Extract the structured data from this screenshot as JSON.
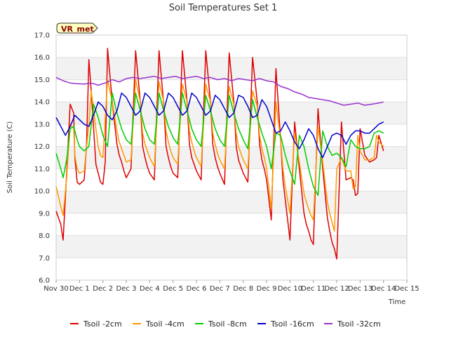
{
  "chart_data": {
    "type": "line",
    "title": "Soil Temperatures Set 1",
    "xlabel": "Time",
    "ylabel": "Soil Temperature (C)",
    "badge": "VR_met",
    "xlim": [
      0,
      15
    ],
    "ylim": [
      6.0,
      17.0
    ],
    "x_ticks": [
      {
        "x": 0,
        "label": "Nov 30"
      },
      {
        "x": 1,
        "label": "Dec 1"
      },
      {
        "x": 2,
        "label": "Dec 2"
      },
      {
        "x": 3,
        "label": "Dec 3"
      },
      {
        "x": 4,
        "label": "Dec 4"
      },
      {
        "x": 5,
        "label": "Dec 5"
      },
      {
        "x": 6,
        "label": "Dec 6"
      },
      {
        "x": 7,
        "label": "Dec 7"
      },
      {
        "x": 8,
        "label": "Dec 8"
      },
      {
        "x": 9,
        "label": "Dec 9"
      },
      {
        "x": 10,
        "label": "Dec 10"
      },
      {
        "x": 11,
        "label": "Dec 11"
      },
      {
        "x": 12,
        "label": "Dec 12"
      },
      {
        "x": 13,
        "label": "Dec 13"
      },
      {
        "x": 14,
        "label": "Dec 14"
      },
      {
        "x": 15,
        "label": "Dec 15"
      }
    ],
    "y_ticks": [
      {
        "y": 6.0,
        "label": "6.0"
      },
      {
        "y": 7.0,
        "label": "7.0"
      },
      {
        "y": 8.0,
        "label": "8.0"
      },
      {
        "y": 9.0,
        "label": "9.0"
      },
      {
        "y": 10.0,
        "label": "10.0"
      },
      {
        "y": 11.0,
        "label": "11.0"
      },
      {
        "y": 12.0,
        "label": "12.0"
      },
      {
        "y": 13.0,
        "label": "13.0"
      },
      {
        "y": 14.0,
        "label": "14.0"
      },
      {
        "y": 15.0,
        "label": "15.0"
      },
      {
        "y": 16.0,
        "label": "16.0"
      },
      {
        "y": 17.0,
        "label": "17.0"
      }
    ],
    "grid": true,
    "legend_position": "bottom",
    "series": [
      {
        "name": "Tsoil -2cm",
        "color": "#dd0000",
        "x": [
          0.0,
          0.2,
          0.3,
          0.45,
          0.6,
          0.75,
          0.8,
          0.9,
          1.0,
          1.1,
          1.2,
          1.3,
          1.4,
          1.5,
          1.7,
          1.8,
          1.9,
          2.0,
          2.1,
          2.2,
          2.4,
          2.6,
          2.7,
          2.8,
          2.9,
          3.0,
          3.2,
          3.4,
          3.6,
          3.7,
          3.8,
          3.9,
          4.0,
          4.2,
          4.4,
          4.6,
          4.7,
          4.8,
          4.9,
          5.0,
          5.2,
          5.4,
          5.6,
          5.7,
          5.8,
          5.9,
          6.0,
          6.2,
          6.4,
          6.6,
          6.7,
          6.8,
          6.9,
          7.0,
          7.2,
          7.4,
          7.6,
          7.7,
          7.8,
          7.9,
          8.0,
          8.2,
          8.4,
          8.6,
          8.7,
          8.8,
          8.9,
          9.0,
          9.2,
          9.4,
          9.6,
          9.7,
          9.8,
          9.9,
          10.0,
          10.2,
          10.4,
          10.6,
          10.7,
          10.8,
          10.9,
          11.0,
          11.2,
          11.4,
          11.6,
          11.7,
          11.8,
          11.9,
          12.0,
          12.2,
          12.4,
          12.6,
          12.7,
          12.8,
          12.9,
          13.0,
          13.2,
          13.4,
          13.6,
          13.7,
          13.8,
          14.0
        ],
        "y": [
          9.1,
          8.5,
          7.8,
          10.8,
          13.9,
          13.5,
          11.5,
          10.4,
          10.3,
          10.4,
          10.5,
          12.0,
          15.9,
          14.5,
          11.2,
          10.8,
          10.4,
          10.3,
          11.3,
          16.4,
          14.0,
          12.1,
          11.6,
          11.3,
          10.9,
          10.6,
          11.0,
          16.3,
          14.0,
          12.0,
          11.5,
          11.1,
          10.8,
          10.5,
          16.3,
          13.9,
          12.0,
          11.5,
          11.1,
          10.8,
          10.6,
          16.3,
          14.0,
          12.1,
          11.5,
          11.2,
          10.9,
          10.5,
          16.3,
          14.0,
          12.1,
          11.5,
          11.1,
          10.8,
          10.3,
          16.2,
          14.0,
          12.0,
          11.4,
          11.1,
          10.8,
          10.4,
          16.0,
          14.0,
          12.1,
          11.4,
          11.0,
          10.5,
          8.7,
          15.5,
          12.3,
          10.5,
          9.6,
          8.7,
          7.8,
          13.1,
          11.0,
          9.0,
          8.5,
          8.2,
          7.8,
          7.6,
          13.7,
          11.0,
          8.8,
          8.2,
          7.7,
          7.4,
          6.95,
          13.1,
          10.5,
          10.6,
          10.5,
          9.8,
          9.9,
          12.8,
          11.6,
          11.3,
          11.4,
          11.5,
          12.5,
          11.8
        ]
      },
      {
        "name": "Tsoil -4cm",
        "color": "#ff9900",
        "x": [
          0.0,
          0.2,
          0.3,
          0.45,
          0.6,
          0.75,
          0.8,
          0.9,
          1.0,
          1.2,
          1.4,
          1.5,
          1.7,
          1.8,
          1.9,
          2.0,
          2.2,
          2.4,
          2.6,
          2.7,
          2.8,
          2.9,
          3.0,
          3.2,
          3.4,
          3.6,
          3.7,
          3.8,
          3.9,
          4.0,
          4.2,
          4.4,
          4.6,
          4.7,
          4.8,
          4.9,
          5.0,
          5.2,
          5.4,
          5.6,
          5.7,
          5.8,
          5.9,
          6.0,
          6.2,
          6.4,
          6.6,
          6.7,
          6.8,
          6.9,
          7.0,
          7.2,
          7.4,
          7.6,
          7.7,
          7.8,
          7.9,
          8.0,
          8.2,
          8.4,
          8.6,
          8.7,
          8.8,
          8.9,
          9.0,
          9.2,
          9.4,
          9.6,
          9.7,
          9.8,
          9.9,
          10.0,
          10.2,
          10.4,
          10.6,
          10.7,
          10.8,
          10.9,
          11.0,
          11.2,
          11.4,
          11.6,
          11.7,
          11.8,
          11.9,
          12.0,
          12.2,
          12.4,
          12.6,
          12.7,
          12.8,
          12.9,
          13.0,
          13.2,
          13.4,
          13.6,
          13.7,
          13.8,
          14.0
        ],
        "y": [
          10.2,
          9.3,
          8.9,
          10.6,
          13.0,
          12.8,
          11.6,
          11.0,
          10.8,
          10.9,
          13.0,
          14.5,
          12.8,
          12.0,
          11.6,
          11.5,
          15.0,
          14.0,
          12.7,
          12.2,
          11.9,
          11.6,
          11.3,
          11.4,
          15.0,
          14.0,
          12.6,
          12.1,
          11.8,
          11.5,
          11.1,
          14.9,
          14.0,
          12.7,
          12.2,
          11.8,
          11.5,
          11.2,
          14.8,
          14.0,
          12.7,
          12.2,
          11.8,
          11.5,
          11.1,
          14.8,
          14.0,
          12.6,
          12.1,
          11.7,
          11.4,
          11.0,
          14.7,
          13.9,
          12.6,
          12.0,
          11.7,
          11.4,
          11.0,
          14.5,
          13.8,
          12.5,
          11.9,
          11.5,
          11.0,
          9.2,
          14.0,
          12.3,
          11.0,
          10.2,
          9.6,
          9.0,
          12.6,
          11.3,
          9.9,
          9.5,
          9.2,
          8.9,
          8.7,
          12.9,
          11.3,
          9.5,
          9.0,
          8.6,
          8.2,
          11.0,
          11.5,
          10.9,
          10.9,
          10.1,
          10.2,
          12.5,
          11.8,
          11.4,
          11.4,
          11.5,
          12.5,
          12.2,
          12.0
        ]
      },
      {
        "name": "Tsoil -8cm",
        "color": "#00cc00",
        "x": [
          0.0,
          0.2,
          0.3,
          0.45,
          0.6,
          0.75,
          0.9,
          1.0,
          1.2,
          1.4,
          1.6,
          1.8,
          2.0,
          2.2,
          2.4,
          2.6,
          2.8,
          3.0,
          3.2,
          3.4,
          3.6,
          3.8,
          4.0,
          4.2,
          4.4,
          4.6,
          4.8,
          5.0,
          5.2,
          5.4,
          5.6,
          5.8,
          6.0,
          6.2,
          6.4,
          6.6,
          6.8,
          7.0,
          7.2,
          7.4,
          7.6,
          7.8,
          8.0,
          8.2,
          8.4,
          8.6,
          8.8,
          9.0,
          9.2,
          9.4,
          9.6,
          9.8,
          10.0,
          10.2,
          10.4,
          10.6,
          10.8,
          11.0,
          11.2,
          11.4,
          11.6,
          11.8,
          12.0,
          12.2,
          12.4,
          12.6,
          12.8,
          13.0,
          13.2,
          13.4,
          13.6,
          13.8,
          14.0
        ],
        "y": [
          11.7,
          11.0,
          10.6,
          11.4,
          12.8,
          12.9,
          12.3,
          12.0,
          11.8,
          12.0,
          13.9,
          13.3,
          12.5,
          12.0,
          14.4,
          13.5,
          12.8,
          12.3,
          12.1,
          14.4,
          13.6,
          12.8,
          12.3,
          12.1,
          14.4,
          13.6,
          12.9,
          12.4,
          12.1,
          14.4,
          13.6,
          12.8,
          12.3,
          12.0,
          14.3,
          13.6,
          12.8,
          12.3,
          12.0,
          14.3,
          13.5,
          12.8,
          12.3,
          11.9,
          14.1,
          13.3,
          12.6,
          12.0,
          11.0,
          12.6,
          12.5,
          11.6,
          10.9,
          10.3,
          12.5,
          12.0,
          11.0,
          10.2,
          9.8,
          12.7,
          12.0,
          11.6,
          11.7,
          11.5,
          11.1,
          12.3,
          12.0,
          11.9,
          11.9,
          12.0,
          12.6,
          12.7,
          12.6
        ]
      },
      {
        "name": "Tsoil -16cm",
        "color": "#0000cc",
        "x": [
          0.0,
          0.2,
          0.4,
          0.6,
          0.8,
          1.0,
          1.2,
          1.4,
          1.6,
          1.8,
          2.0,
          2.2,
          2.4,
          2.6,
          2.8,
          3.0,
          3.2,
          3.4,
          3.6,
          3.8,
          4.0,
          4.2,
          4.4,
          4.6,
          4.8,
          5.0,
          5.2,
          5.4,
          5.6,
          5.8,
          6.0,
          6.2,
          6.4,
          6.6,
          6.8,
          7.0,
          7.2,
          7.4,
          7.6,
          7.8,
          8.0,
          8.2,
          8.4,
          8.6,
          8.8,
          9.0,
          9.2,
          9.4,
          9.6,
          9.8,
          10.0,
          10.2,
          10.4,
          10.6,
          10.8,
          11.0,
          11.2,
          11.4,
          11.6,
          11.8,
          12.0,
          12.2,
          12.4,
          12.6,
          12.8,
          13.0,
          13.2,
          13.4,
          13.6,
          13.8,
          14.0
        ],
        "y": [
          13.3,
          12.9,
          12.5,
          12.9,
          13.4,
          13.2,
          13.0,
          12.9,
          13.4,
          14.0,
          13.8,
          13.4,
          13.2,
          13.6,
          14.4,
          14.2,
          13.8,
          13.4,
          13.6,
          14.4,
          14.2,
          13.8,
          13.4,
          13.6,
          14.4,
          14.2,
          13.8,
          13.4,
          13.6,
          14.4,
          14.2,
          13.8,
          13.4,
          13.6,
          14.3,
          14.1,
          13.7,
          13.3,
          13.5,
          14.3,
          14.2,
          13.8,
          13.3,
          13.4,
          14.1,
          13.8,
          13.2,
          12.6,
          12.7,
          13.1,
          12.7,
          12.2,
          11.9,
          12.3,
          12.8,
          12.5,
          11.9,
          11.5,
          12.0,
          12.5,
          12.6,
          12.5,
          12.1,
          12.5,
          12.7,
          12.7,
          12.6,
          12.6,
          12.8,
          13.0,
          13.1
        ]
      },
      {
        "name": "Tsoil -32cm",
        "color": "#9933cc",
        "x": [
          0.0,
          0.3,
          0.6,
          0.9,
          1.2,
          1.5,
          1.8,
          2.1,
          2.4,
          2.7,
          3.0,
          3.3,
          3.6,
          3.9,
          4.2,
          4.5,
          4.8,
          5.1,
          5.4,
          5.7,
          6.0,
          6.3,
          6.6,
          6.9,
          7.2,
          7.5,
          7.8,
          8.1,
          8.4,
          8.7,
          9.0,
          9.3,
          9.6,
          9.9,
          10.2,
          10.5,
          10.8,
          11.1,
          11.4,
          11.7,
          12.0,
          12.3,
          12.6,
          12.9,
          13.2,
          13.5,
          13.8,
          14.0
        ],
        "y": [
          15.1,
          14.95,
          14.85,
          14.82,
          14.8,
          14.85,
          14.75,
          14.85,
          15.0,
          14.9,
          15.05,
          15.1,
          15.05,
          15.1,
          15.15,
          15.05,
          15.1,
          15.15,
          15.05,
          15.1,
          15.15,
          15.05,
          15.1,
          15.0,
          15.05,
          14.95,
          15.05,
          15.0,
          14.95,
          15.05,
          14.95,
          14.9,
          14.7,
          14.6,
          14.45,
          14.35,
          14.2,
          14.15,
          14.1,
          14.05,
          13.95,
          13.85,
          13.9,
          13.95,
          13.85,
          13.9,
          13.95,
          14.0
        ]
      }
    ]
  }
}
